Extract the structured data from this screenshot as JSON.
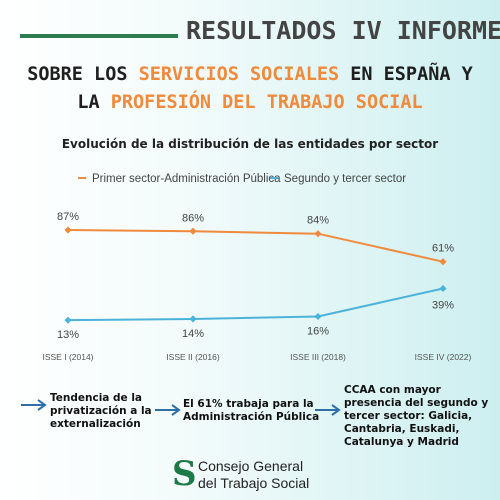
{
  "header": {
    "title": "RESULTADOS IV INFORME",
    "line1": [
      {
        "text": "SOBRE LOS ",
        "accent": false
      },
      {
        "text": "SERVICIOS SOCIALES",
        "accent": true
      },
      {
        "text": " EN ESPAÑA Y",
        "accent": false
      }
    ],
    "line2": [
      {
        "text": "LA ",
        "accent": false
      },
      {
        "text": "PROFESIÓN DEL TRABAJO SOCIAL",
        "accent": true
      }
    ]
  },
  "colors": {
    "accent": "#f08a3c",
    "series1": "#f08a3c",
    "series2": "#4bb3d9",
    "brand": "#1d7a47"
  },
  "chart_data": {
    "type": "line",
    "title": "Evolución de la distribución de las entidades por sector",
    "categories": [
      "ISSE I (2014)",
      "ISSE II (2016)",
      "ISSE III (2018)",
      "ISSE IV (2022)"
    ],
    "series": [
      {
        "name": "Primer sector-Administración Pública",
        "values": [
          87,
          86,
          84,
          61
        ],
        "labels": [
          "87%",
          "86%",
          "84%",
          "61%"
        ]
      },
      {
        "name": "Segundo y tercer sector",
        "values": [
          13,
          14,
          16,
          39
        ],
        "labels": [
          "13%",
          "14%",
          "16%",
          "39%"
        ]
      }
    ],
    "legend": "top",
    "grid": false
  },
  "notes": [
    {
      "lines": [
        "Tendencia de la",
        "privatización a la",
        "externalización"
      ]
    },
    {
      "lines": [
        "El 61% trabaja para la",
        "Administración Pública"
      ]
    },
    {
      "lines": [
        "CCAA con mayor",
        "presencia del segundo y",
        "tercer sector: Galicia,",
        "Cantabria, Euskadi,",
        "Catalunya y Madrid"
      ]
    }
  ],
  "logo": {
    "mark": "S",
    "line1": "Consejo General",
    "line2": "del Trabajo Social"
  }
}
